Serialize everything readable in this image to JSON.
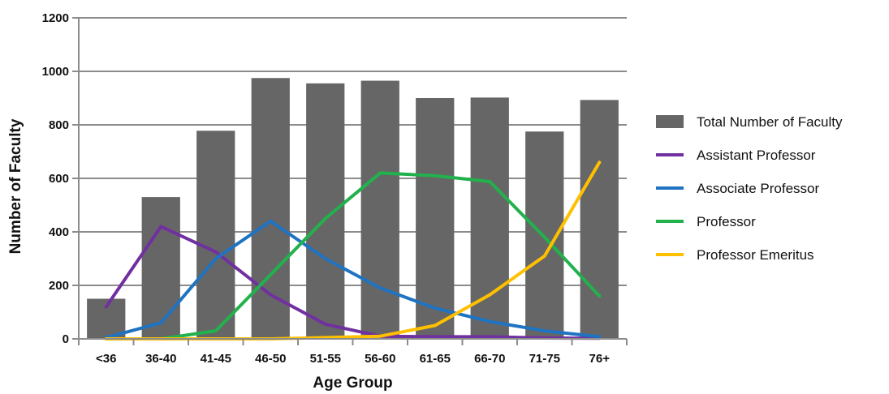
{
  "chart_data": {
    "type": "bar",
    "xlabel": "Age Group",
    "ylabel": "Number of Faculty",
    "ylim": [
      0,
      1200
    ],
    "yticks": [
      0,
      200,
      400,
      600,
      800,
      1000,
      1200
    ],
    "categories": [
      "<36",
      "36-40",
      "41-45",
      "46-50",
      "51-55",
      "56-60",
      "61-65",
      "66-70",
      "71-75",
      "76+"
    ],
    "bar_series": {
      "name": "Total Number of Faculty",
      "color": "#666666",
      "values": [
        150,
        530,
        778,
        975,
        955,
        965,
        900,
        902,
        775,
        893
      ]
    },
    "line_series": [
      {
        "name": "Assistant Professor",
        "color": "#7030a0",
        "values": [
          120,
          420,
          325,
          165,
          55,
          10,
          8,
          8,
          3,
          2
        ]
      },
      {
        "name": "Associate Professor",
        "color": "#1f73c1",
        "values": [
          5,
          60,
          300,
          440,
          300,
          190,
          115,
          65,
          30,
          8
        ]
      },
      {
        "name": "Professor",
        "color": "#22b14c",
        "values": [
          0,
          0,
          30,
          240,
          450,
          620,
          610,
          588,
          380,
          160
        ]
      },
      {
        "name": "Professor Emeritus",
        "color": "#ffc000",
        "values": [
          0,
          0,
          0,
          0,
          5,
          10,
          50,
          165,
          310,
          660
        ]
      }
    ],
    "grid": true,
    "legend_position": "right"
  }
}
